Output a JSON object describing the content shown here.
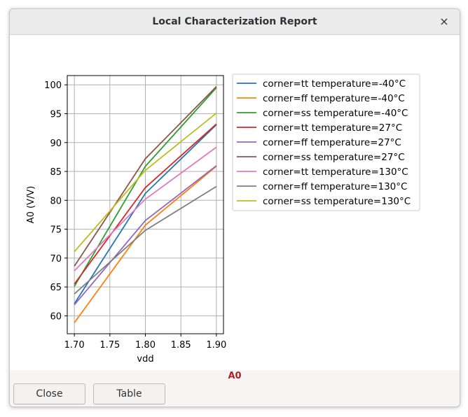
{
  "window": {
    "title": "Local Characterization Report",
    "close_glyph": "×"
  },
  "status": {
    "label": "A0",
    "color": "#b02020"
  },
  "buttons": {
    "close_label": "Close",
    "table_label": "Table"
  },
  "chart_data": {
    "type": "line",
    "xlabel": "vdd",
    "ylabel": "A0 (V/V)",
    "x": [
      1.7,
      1.8,
      1.9
    ],
    "xlim": [
      1.69,
      1.91
    ],
    "ylim": [
      56.9,
      101.6
    ],
    "xticks": [
      "1.70",
      "1.75",
      "1.80",
      "1.85",
      "1.90"
    ],
    "yticks": [
      "60",
      "65",
      "70",
      "75",
      "80",
      "85",
      "90",
      "95",
      "100"
    ],
    "grid": true,
    "legend_position": "outside right, top",
    "series": [
      {
        "name": "corner=tt temperature=-40°C",
        "color": "#1f77b4",
        "values": [
          62.1,
          81.2,
          93.1
        ]
      },
      {
        "name": "corner=ff temperature=-40°C",
        "color": "#ff7f0e",
        "values": [
          58.8,
          75.7,
          85.9
        ]
      },
      {
        "name": "corner=ss temperature=-40°C",
        "color": "#2ca02c",
        "values": [
          65.1,
          85.9,
          99.5
        ]
      },
      {
        "name": "corner=tt temperature=27°C",
        "color": "#d62728",
        "values": [
          65.5,
          82.2,
          93.2
        ]
      },
      {
        "name": "corner=ff temperature=27°C",
        "color": "#9467bd",
        "values": [
          61.9,
          76.5,
          86.0
        ]
      },
      {
        "name": "corner=ss temperature=27°C",
        "color": "#8c564b",
        "values": [
          68.6,
          87.2,
          99.7
        ]
      },
      {
        "name": "corner=tt temperature=130°C",
        "color": "#e377c2",
        "values": [
          67.8,
          80.2,
          89.2
        ]
      },
      {
        "name": "corner=ff temperature=130°C",
        "color": "#7f7f7f",
        "values": [
          63.8,
          74.8,
          82.4
        ]
      },
      {
        "name": "corner=ss temperature=130°C",
        "color": "#bcbd22",
        "values": [
          71.1,
          85.2,
          95.1
        ]
      }
    ]
  }
}
